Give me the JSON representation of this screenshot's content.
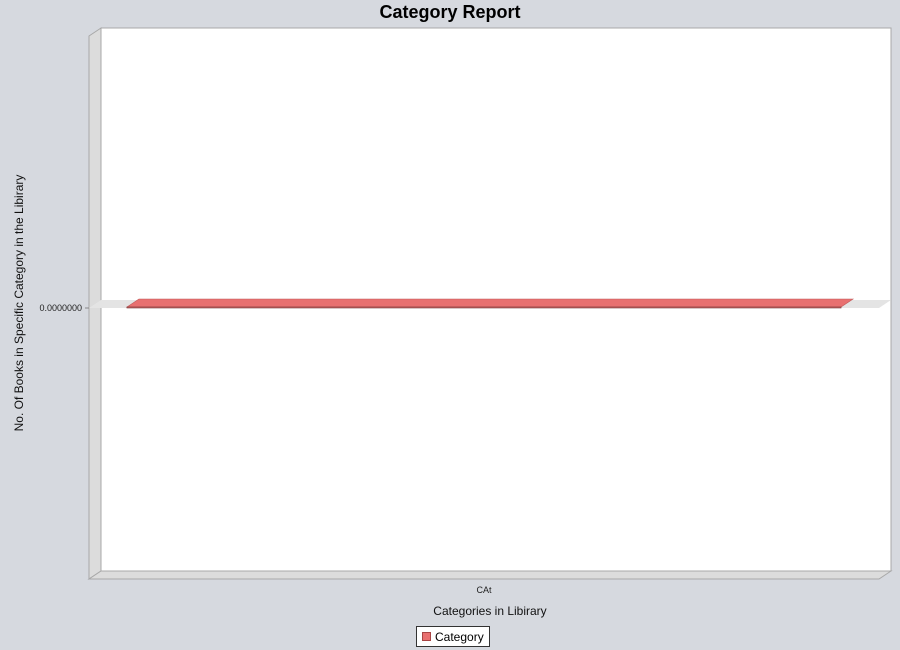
{
  "chart_data": {
    "type": "bar",
    "style": "3d",
    "title": "Category Report",
    "xlabel": "Categories in Libirary",
    "ylabel": "No. Of Books in Specific Category in the Libirary",
    "categories": [
      "CAt"
    ],
    "series": [
      {
        "name": "Category",
        "values": [
          0
        ],
        "color": "#e87070"
      }
    ],
    "y_tick_labels": [
      "0.0000000"
    ],
    "legend": "bottom-center",
    "grid": false
  }
}
